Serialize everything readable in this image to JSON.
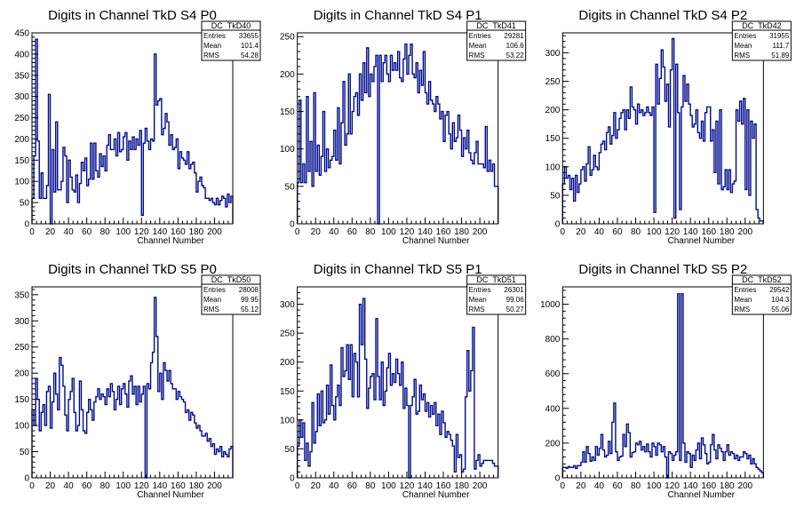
{
  "chart_data": [
    {
      "type": "histogram",
      "title": "Digits in Channel TkD S4 P0",
      "xlabel": "Channel Number",
      "ylabel": "",
      "xlim": [
        0,
        220
      ],
      "ylim": [
        0,
        450
      ],
      "xticks": [
        0,
        20,
        40,
        60,
        80,
        100,
        120,
        140,
        160,
        180,
        200
      ],
      "yticks": [
        0,
        50,
        100,
        150,
        200,
        250,
        300,
        350,
        400,
        450
      ],
      "stats": {
        "name": "DC_TkD40",
        "entries": "33655",
        "mean": "101.4",
        "rms": "54.28"
      },
      "bin_width": 2,
      "values": [
        60,
        160,
        435,
        195,
        60,
        120,
        60,
        60,
        90,
        305,
        0,
        175,
        75,
        240,
        80,
        80,
        100,
        180,
        160,
        50,
        150,
        110,
        80,
        75,
        115,
        50,
        95,
        145,
        125,
        155,
        90,
        105,
        190,
        105,
        190,
        125,
        110,
        165,
        135,
        160,
        125,
        185,
        210,
        175,
        175,
        200,
        160,
        215,
        170,
        175,
        205,
        215,
        150,
        195,
        175,
        205,
        175,
        200,
        185,
        220,
        20,
        190,
        225,
        195,
        175,
        200,
        195,
        400,
        280,
        290,
        295,
        210,
        225,
        260,
        240,
        185,
        210,
        175,
        180,
        200,
        130,
        170,
        155,
        150,
        140,
        170,
        130,
        140,
        145,
        120,
        75,
        100,
        110,
        90,
        85,
        60,
        60,
        55,
        60,
        50,
        45,
        60,
        45,
        55,
        65,
        60,
        40,
        70,
        50,
        65
      ]
    },
    {
      "type": "histogram",
      "title": "Digits in Channel TkD S4 P1",
      "xlabel": "Channel Number",
      "ylabel": "",
      "xlim": [
        0,
        220
      ],
      "ylim": [
        0,
        255
      ],
      "xticks": [
        0,
        20,
        40,
        60,
        80,
        100,
        120,
        140,
        160,
        180,
        200
      ],
      "yticks": [
        0,
        50,
        100,
        150,
        200,
        250
      ],
      "stats": {
        "name": "DC_TkD41",
        "entries": "29281",
        "mean": "106.6",
        "rms": "53.22"
      },
      "bin_width": 2,
      "values": [
        55,
        165,
        55,
        80,
        55,
        170,
        70,
        110,
        50,
        175,
        70,
        105,
        65,
        90,
        150,
        70,
        100,
        75,
        85,
        90,
        125,
        85,
        155,
        80,
        135,
        190,
        105,
        120,
        200,
        120,
        150,
        170,
        175,
        145,
        200,
        165,
        215,
        175,
        235,
        170,
        200,
        190,
        210,
        225,
        0,
        225,
        190,
        215,
        225,
        200,
        190,
        225,
        205,
        215,
        205,
        230,
        195,
        190,
        220,
        240,
        200,
        225,
        240,
        200,
        195,
        215,
        175,
        205,
        185,
        230,
        175,
        160,
        190,
        165,
        160,
        150,
        170,
        160,
        140,
        150,
        110,
        145,
        150,
        120,
        100,
        135,
        110,
        115,
        145,
        125,
        90,
        115,
        100,
        125,
        95,
        85,
        80,
        95,
        110,
        80,
        80,
        80,
        75,
        130,
        70,
        85,
        70,
        80,
        50,
        50
      ]
    },
    {
      "type": "histogram",
      "title": "Digits in Channel TkD S4 P2",
      "xlabel": "Channel Number",
      "ylabel": "",
      "xlim": [
        0,
        220
      ],
      "ylim": [
        0,
        335
      ],
      "xticks": [
        0,
        20,
        40,
        60,
        80,
        100,
        120,
        140,
        160,
        180,
        200
      ],
      "yticks": [
        0,
        50,
        100,
        150,
        200,
        250,
        300
      ],
      "stats": {
        "name": "DC_TkD42",
        "entries": "31955",
        "mean": "111.7",
        "rms": "51.89"
      },
      "bin_width": 2,
      "values": [
        70,
        100,
        80,
        85,
        60,
        80,
        40,
        85,
        55,
        70,
        95,
        100,
        75,
        105,
        135,
        85,
        95,
        120,
        100,
        95,
        125,
        140,
        145,
        130,
        160,
        170,
        140,
        155,
        195,
        150,
        165,
        185,
        195,
        200,
        165,
        200,
        185,
        240,
        205,
        200,
        175,
        210,
        195,
        200,
        190,
        195,
        205,
        195,
        190,
        205,
        20,
        280,
        210,
        255,
        305,
        275,
        215,
        245,
        170,
        270,
        325,
        10,
        280,
        195,
        25,
        205,
        260,
        215,
        245,
        210,
        190,
        170,
        175,
        200,
        160,
        150,
        180,
        145,
        195,
        205,
        205,
        145,
        165,
        90,
        180,
        70,
        200,
        60,
        65,
        95,
        60,
        95,
        55,
        70,
        75,
        200,
        180,
        215,
        175,
        220,
        60,
        200,
        50,
        180,
        150,
        175,
        25,
        10,
        5,
        5
      ]
    },
    {
      "type": "histogram",
      "title": "Digits in Channel TkD S5 P0",
      "xlabel": "Channel Number",
      "ylabel": "",
      "xlim": [
        0,
        220
      ],
      "ylim": [
        0,
        365
      ],
      "xticks": [
        0,
        20,
        40,
        60,
        80,
        100,
        120,
        140,
        160,
        180,
        200
      ],
      "yticks": [
        0,
        50,
        100,
        150,
        200,
        250,
        300,
        350
      ],
      "stats": {
        "name": "DC_TkD50",
        "entries": "28008",
        "mean": "99.95",
        "rms": "55.12"
      },
      "bin_width": 2,
      "values": [
        130,
        100,
        190,
        150,
        90,
        125,
        140,
        100,
        165,
        175,
        95,
        145,
        200,
        160,
        130,
        230,
        215,
        175,
        120,
        90,
        150,
        165,
        190,
        125,
        90,
        100,
        185,
        130,
        90,
        85,
        125,
        150,
        130,
        110,
        145,
        155,
        170,
        150,
        160,
        155,
        140,
        170,
        155,
        180,
        165,
        130,
        150,
        175,
        140,
        170,
        180,
        160,
        135,
        185,
        195,
        160,
        175,
        140,
        175,
        145,
        160,
        175,
        0,
        180,
        170,
        220,
        240,
        345,
        270,
        165,
        200,
        150,
        220,
        205,
        185,
        205,
        180,
        170,
        170,
        150,
        165,
        155,
        150,
        145,
        125,
        130,
        110,
        125,
        120,
        105,
        95,
        100,
        90,
        80,
        80,
        85,
        70,
        75,
        60,
        65,
        45,
        55,
        50,
        60,
        40,
        50,
        45,
        40,
        55,
        60
      ]
    },
    {
      "type": "histogram",
      "title": "Digits in Channel TkD S5 P1",
      "xlabel": "Channel Number",
      "ylabel": "",
      "xlim": [
        0,
        220
      ],
      "ylim": [
        0,
        330
      ],
      "xticks": [
        0,
        20,
        40,
        60,
        80,
        100,
        120,
        140,
        160,
        180,
        200
      ],
      "yticks": [
        0,
        50,
        100,
        150,
        200,
        250,
        300
      ],
      "stats": {
        "name": "DC_TkD51",
        "entries": "26301",
        "mean": "99.06",
        "rms": "50.27"
      },
      "bin_width": 2,
      "values": [
        55,
        100,
        70,
        95,
        30,
        60,
        20,
        45,
        130,
        60,
        80,
        145,
        90,
        150,
        95,
        100,
        160,
        110,
        195,
        125,
        100,
        140,
        160,
        125,
        225,
        175,
        185,
        230,
        170,
        230,
        140,
        215,
        200,
        140,
        300,
        230,
        310,
        205,
        120,
        155,
        175,
        180,
        135,
        275,
        175,
        135,
        200,
        125,
        150,
        190,
        215,
        160,
        180,
        165,
        205,
        180,
        160,
        200,
        120,
        155,
        125,
        0,
        125,
        140,
        170,
        110,
        115,
        160,
        135,
        145,
        115,
        130,
        105,
        125,
        110,
        130,
        90,
        110,
        75,
        115,
        95,
        70,
        80,
        75,
        65,
        55,
        10,
        75,
        35,
        40,
        10,
        15,
        140,
        220,
        150,
        185,
        260,
        15,
        30,
        40,
        20,
        25,
        30,
        30,
        30,
        30,
        30,
        25,
        20,
        20
      ]
    },
    {
      "type": "histogram",
      "title": "Digits in Channel TkD S5 P2",
      "xlabel": "Channel Number",
      "ylabel": "",
      "xlim": [
        0,
        220
      ],
      "ylim": [
        0,
        1100
      ],
      "xticks": [
        0,
        20,
        40,
        60,
        80,
        100,
        120,
        140,
        160,
        180,
        200
      ],
      "yticks": [
        0,
        200,
        400,
        600,
        800,
        1000
      ],
      "stats": {
        "name": "DC_TkD52",
        "entries": "29542",
        "mean": "104.3",
        "rms": "55.06"
      },
      "bin_width": 2,
      "values": [
        60,
        60,
        55,
        65,
        60,
        60,
        70,
        55,
        70,
        70,
        90,
        150,
        90,
        180,
        140,
        95,
        120,
        100,
        180,
        130,
        170,
        250,
        160,
        120,
        130,
        210,
        140,
        320,
        430,
        150,
        100,
        120,
        125,
        250,
        180,
        310,
        260,
        120,
        145,
        150,
        200,
        190,
        210,
        160,
        180,
        150,
        195,
        150,
        120,
        200,
        180,
        130,
        200,
        190,
        150,
        180,
        120,
        0,
        150,
        140,
        100,
        130,
        150,
        1060,
        100,
        1060,
        200,
        90,
        150,
        140,
        60,
        130,
        100,
        160,
        200,
        110,
        230,
        190,
        140,
        80,
        90,
        190,
        250,
        160,
        110,
        190,
        170,
        150,
        100,
        150,
        190,
        130,
        150,
        140,
        110,
        130,
        100,
        120,
        120,
        150,
        140,
        110,
        130,
        80,
        110,
        80,
        60,
        50,
        40,
        30
      ]
    }
  ]
}
